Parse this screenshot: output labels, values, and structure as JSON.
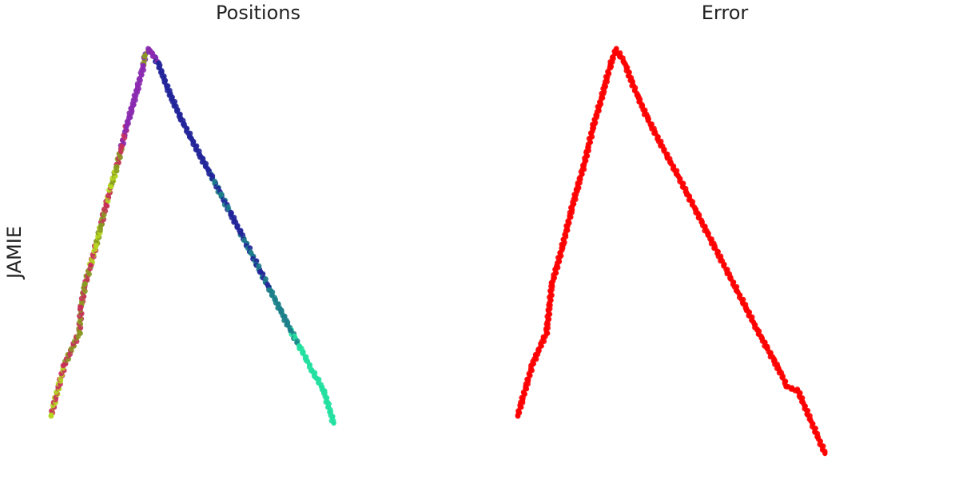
{
  "row_label": "JAMIE",
  "chart_data": [
    {
      "type": "scatter",
      "title": "Positions",
      "xlabel": "",
      "ylabel": "",
      "grid": false,
      "legend": "none",
      "xlim": [
        0,
        1
      ],
      "ylim": [
        0,
        1
      ],
      "point_color_scale": [
        "#b5d620",
        "#c8305a",
        "#8a9a20",
        "#8a2ab0",
        "#22259a",
        "#1c7f8a",
        "#24e0a0"
      ],
      "series": [
        {
          "description_of_shape": "inverted V: left arm rising steeply to apex, right arm descending gradually",
          "x": [
            0.0,
            0.032,
            0.068,
            0.072,
            0.082,
            0.095,
            0.108,
            0.12,
            0.132,
            0.144,
            0.158,
            0.17,
            0.182,
            0.196,
            0.208,
            0.222,
            0.226,
            0.236,
            0.246,
            0.258,
            0.272,
            0.29,
            0.312,
            0.336,
            0.36,
            0.384,
            0.408,
            0.432,
            0.456,
            0.48,
            0.504,
            0.528,
            0.552,
            0.576,
            0.598,
            0.616,
            0.628,
            0.64,
            0.656,
            0.68
          ],
          "y": [
            0.095,
            0.22,
            0.3,
            0.362,
            0.42,
            0.466,
            0.515,
            0.565,
            0.615,
            0.66,
            0.71,
            0.76,
            0.812,
            0.86,
            0.905,
            0.96,
            0.985,
            1.0,
            0.985,
            0.965,
            0.925,
            0.88,
            0.83,
            0.782,
            0.735,
            0.69,
            0.642,
            0.594,
            0.546,
            0.498,
            0.45,
            0.402,
            0.355,
            0.305,
            0.265,
            0.23,
            0.205,
            0.185,
            0.155,
            0.075
          ],
          "color_index": [
            0,
            1,
            2,
            1,
            2,
            1,
            0,
            2,
            1,
            0,
            2,
            1,
            3,
            3,
            3,
            3,
            2,
            3,
            3,
            4,
            4,
            4,
            4,
            4,
            4,
            4,
            5,
            4,
            4,
            5,
            4,
            5,
            5,
            5,
            6,
            6,
            6,
            6,
            6,
            6
          ]
        }
      ]
    },
    {
      "type": "scatter",
      "title": "Error",
      "xlabel": "",
      "ylabel": "",
      "grid": false,
      "legend": "none",
      "xlim": [
        0,
        1
      ],
      "ylim": [
        0,
        1
      ],
      "point_color": "#ff0000",
      "series": [
        {
          "description_of_shape": "inverted V: left arm rising steeply to apex, right arm descending gradually",
          "x": [
            0.0,
            0.035,
            0.069,
            0.082,
            0.095,
            0.108,
            0.12,
            0.132,
            0.144,
            0.158,
            0.17,
            0.182,
            0.196,
            0.208,
            0.222,
            0.236,
            0.246,
            0.258,
            0.272,
            0.29,
            0.312,
            0.336,
            0.36,
            0.384,
            0.408,
            0.432,
            0.456,
            0.48,
            0.504,
            0.528,
            0.552,
            0.576,
            0.598,
            0.616,
            0.63,
            0.648,
            0.674,
            0.739
          ],
          "y": [
            0.095,
            0.22,
            0.3,
            0.42,
            0.466,
            0.515,
            0.565,
            0.615,
            0.66,
            0.71,
            0.76,
            0.812,
            0.86,
            0.905,
            0.96,
            1.0,
            0.985,
            0.965,
            0.925,
            0.88,
            0.83,
            0.782,
            0.735,
            0.69,
            0.642,
            0.594,
            0.546,
            0.498,
            0.45,
            0.402,
            0.355,
            0.305,
            0.265,
            0.23,
            0.205,
            0.165,
            0.155,
            0.0
          ]
        }
      ]
    }
  ]
}
